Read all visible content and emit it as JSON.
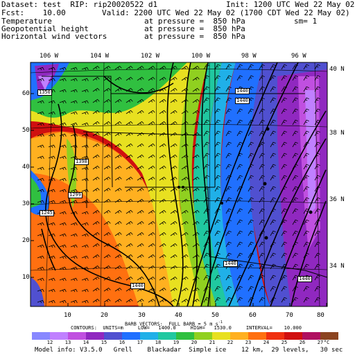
{
  "header": {
    "line1_left": "Dataset: test  RIP: rip20020522 d1",
    "line1_right": "Init: 1200 UTC Wed 22 May 02",
    "line2_left": "Fcst:    10.00",
    "line2_right": "Valid: 2200 UTC Wed 22 May 02 (1700 CDT Wed 22 May 02)",
    "fields": [
      {
        "name": "Temperature",
        "pressure": "at pressure =  850 hPa",
        "extra": "sm= 1"
      },
      {
        "name": "Geopotential height",
        "pressure": "at pressure =  850 hPa",
        "extra": ""
      },
      {
        "name": "Horizontal wind vectors",
        "pressure": "at pressure =  850 hPa",
        "extra": ""
      }
    ]
  },
  "map": {
    "lon_labels": [
      "106 W",
      "104 W",
      "102 W",
      "100 W",
      "98 W",
      "96 W"
    ],
    "lat_labels": [
      "40 N",
      "38 N",
      "36 N",
      "34 N"
    ],
    "x_ticks": [
      "10",
      "20",
      "30",
      "40",
      "50",
      "60",
      "70",
      "80"
    ],
    "y_ticks": [
      "10",
      "20",
      "30",
      "40",
      "50",
      "60"
    ],
    "height_labels": [
      "1350",
      "1398",
      "1299",
      "1245",
      "1440",
      "1440",
      "1440",
      "1440",
      "1440"
    ]
  },
  "footer": {
    "barb_line": "BARB VECTORS:  FULL BARB = 5 m s",
    "barb_exp": "-1",
    "contour_line": "CONTOURS:  UNITS=m     LOW=   1400.0     HIGH=   1530.0     INTERVAL=    10.000",
    "colorbar_labels": [
      "12",
      "13",
      "14",
      "15",
      "16",
      "17",
      "18",
      "19",
      "20",
      "21",
      "22",
      "23",
      "24",
      "25",
      "26",
      "27"
    ],
    "colorbar_unit": "°C",
    "model_info": "Model info: V3.5.0   Grell    Blackadar  Simple ice    12 km,  29 levels,   30 sec",
    "colors": [
      "#8888ff",
      "#c080ff",
      "#c050e0",
      "#9028c0",
      "#5050d0",
      "#2070ff",
      "#20b0e8",
      "#20c8a0",
      "#30c040",
      "#90d020",
      "#e8e020",
      "#ffb020",
      "#ff7010",
      "#f03010",
      "#d01010",
      "#b01060",
      "#8c4420"
    ]
  }
}
